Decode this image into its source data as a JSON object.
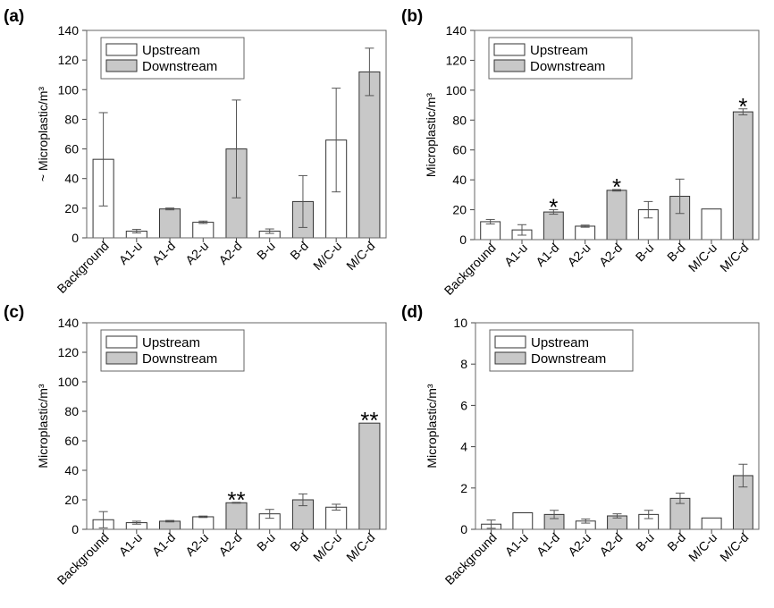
{
  "legend": {
    "upstream": "Upstream",
    "downstream": "Downstream"
  },
  "colors": {
    "upstream": "#ffffff",
    "downstream": "#c8c8c8",
    "background_bar": "#ffffff"
  },
  "chart_data": [
    {
      "panel": "(a)",
      "type": "bar",
      "ylabel": "~ Microplastic/m³",
      "ylim": [
        0,
        140
      ],
      "yticks": [
        "0",
        "20",
        "40",
        "60",
        "80",
        "100",
        "120",
        "140"
      ],
      "categories": [
        "Background",
        "A1-u",
        "A1-d",
        "A2-u",
        "A2-d",
        "B-u",
        "B-d",
        "M/C-u",
        "M/C-d"
      ],
      "kinds": [
        "up",
        "up",
        "down",
        "up",
        "down",
        "up",
        "down",
        "up",
        "down"
      ],
      "values": [
        53,
        4.5,
        19.5,
        10.5,
        60,
        4.5,
        24.5,
        66,
        112
      ],
      "errors": [
        31.5,
        1.2,
        0.6,
        0.8,
        33,
        1.5,
        17.5,
        35,
        16
      ],
      "significance": [
        "",
        "",
        "",
        "",
        "",
        "",
        "",
        "",
        ""
      ],
      "legend_position": "top-left"
    },
    {
      "panel": "(b)",
      "type": "bar",
      "ylabel": "Microplastic/m³",
      "ylim": [
        0,
        140
      ],
      "yticks": [
        "0",
        "20",
        "40",
        "60",
        "80",
        "100",
        "120",
        "140"
      ],
      "categories": [
        "Background",
        "A1-u",
        "A1-d",
        "A2-u",
        "A2-d",
        "B-u",
        "B-d",
        "M/C-u",
        "M/C-d"
      ],
      "kinds": [
        "up",
        "up",
        "down",
        "up",
        "down",
        "up",
        "down",
        "up",
        "down"
      ],
      "values": [
        12,
        6.5,
        18.5,
        9,
        33,
        20,
        29,
        20.5,
        85.5
      ],
      "errors": [
        1.5,
        3.5,
        1.5,
        0.7,
        0.5,
        5.5,
        11.5,
        0,
        2
      ],
      "significance": [
        "",
        "",
        "*",
        "",
        "*",
        "",
        "",
        "",
        "*"
      ],
      "legend_position": "top-left"
    },
    {
      "panel": "(c)",
      "type": "bar",
      "ylabel": "Microplastic/m³",
      "ylim": [
        0,
        140
      ],
      "yticks": [
        "0",
        "20",
        "40",
        "60",
        "80",
        "100",
        "120",
        "140"
      ],
      "categories": [
        "Background",
        "A1-u",
        "A1-d",
        "A2-u",
        "A2-d",
        "B-u",
        "B-d",
        "M/C-u",
        "M/C-d"
      ],
      "kinds": [
        "up",
        "up",
        "down",
        "up",
        "down",
        "up",
        "down",
        "up",
        "down"
      ],
      "values": [
        6.5,
        4.5,
        5.5,
        8.5,
        18,
        10.5,
        20,
        15,
        72
      ],
      "errors": [
        5.5,
        1,
        0.5,
        0.5,
        0.3,
        3,
        4,
        2,
        0
      ],
      "significance": [
        "",
        "",
        "",
        "",
        "**",
        "",
        "",
        "",
        "**"
      ],
      "legend_position": "top-left"
    },
    {
      "panel": "(d)",
      "type": "bar",
      "ylabel": "Microplastic/m³",
      "ylim": [
        0,
        10
      ],
      "yticks": [
        "0",
        "2",
        "4",
        "6",
        "8",
        "10"
      ],
      "categories": [
        "Background",
        "A1-u",
        "A1-d",
        "A2-u",
        "A2-d",
        "B-u",
        "B-d",
        "M/C-u",
        "M/C-d"
      ],
      "kinds": [
        "up",
        "up",
        "down",
        "up",
        "down",
        "up",
        "down",
        "up",
        "down"
      ],
      "values": [
        0.25,
        0.8,
        0.72,
        0.4,
        0.65,
        0.72,
        1.5,
        0.55,
        2.6
      ],
      "errors": [
        0.2,
        0,
        0.2,
        0.1,
        0.1,
        0.2,
        0.25,
        0,
        0.55
      ],
      "significance": [
        "",
        "",
        "",
        "",
        "",
        "",
        "",
        "",
        ""
      ],
      "legend_position": "top-left"
    }
  ]
}
